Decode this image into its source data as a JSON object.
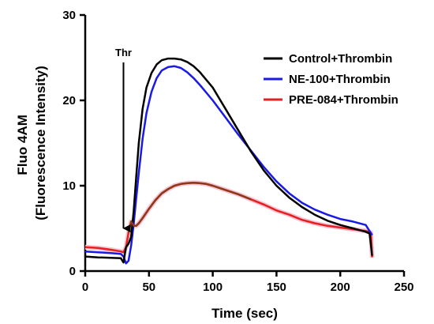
{
  "chart_data": {
    "type": "line",
    "xlabel": "Time (sec)",
    "ylabel_lines": [
      "Fluo 4AM",
      "(Fluorescence Intensity)"
    ],
    "xlim": [
      0,
      250
    ],
    "ylim": [
      0,
      30
    ],
    "xticks": [
      0,
      50,
      100,
      150,
      200,
      250
    ],
    "yticks": [
      0,
      10,
      20,
      30
    ],
    "grid": false,
    "legend_position": "top-right",
    "annotation": {
      "text": "Thr",
      "x": 30,
      "y_from": 25,
      "y_to": 5
    },
    "series": [
      {
        "name": "Control+Thrombin",
        "color": "#000000",
        "points": [
          [
            0,
            1.7
          ],
          [
            10,
            1.6
          ],
          [
            20,
            1.55
          ],
          [
            28,
            1.5
          ],
          [
            30,
            1.0
          ],
          [
            32,
            2.8
          ],
          [
            34,
            3.2
          ],
          [
            36,
            4.0
          ],
          [
            38,
            7.0
          ],
          [
            40,
            11.0
          ],
          [
            42,
            15.0
          ],
          [
            45,
            19.0
          ],
          [
            48,
            21.5
          ],
          [
            52,
            23.2
          ],
          [
            56,
            24.2
          ],
          [
            60,
            24.7
          ],
          [
            65,
            24.9
          ],
          [
            70,
            24.9
          ],
          [
            75,
            24.8
          ],
          [
            80,
            24.5
          ],
          [
            85,
            24.0
          ],
          [
            90,
            23.3
          ],
          [
            100,
            21.5
          ],
          [
            110,
            19.0
          ],
          [
            120,
            16.5
          ],
          [
            130,
            14.0
          ],
          [
            140,
            11.8
          ],
          [
            150,
            10.0
          ],
          [
            160,
            8.6
          ],
          [
            170,
            7.5
          ],
          [
            180,
            6.6
          ],
          [
            190,
            5.9
          ],
          [
            200,
            5.4
          ],
          [
            210,
            5.0
          ],
          [
            220,
            4.6
          ],
          [
            223,
            4.4
          ],
          [
            225,
            1.8
          ]
        ]
      },
      {
        "name": "NE-100+Thrombin",
        "color": "#1a1ae6",
        "points": [
          [
            0,
            2.3
          ],
          [
            10,
            2.2
          ],
          [
            20,
            2.1
          ],
          [
            28,
            2.0
          ],
          [
            30,
            1.7
          ],
          [
            32,
            0.9
          ],
          [
            34,
            1.2
          ],
          [
            36,
            3.0
          ],
          [
            38,
            5.5
          ],
          [
            40,
            8.5
          ],
          [
            42,
            11.5
          ],
          [
            45,
            15.5
          ],
          [
            48,
            18.5
          ],
          [
            52,
            21.0
          ],
          [
            56,
            22.6
          ],
          [
            60,
            23.5
          ],
          [
            65,
            23.9
          ],
          [
            70,
            24.0
          ],
          [
            75,
            23.8
          ],
          [
            80,
            23.3
          ],
          [
            85,
            22.6
          ],
          [
            90,
            21.8
          ],
          [
            100,
            20.0
          ],
          [
            110,
            18.0
          ],
          [
            120,
            16.0
          ],
          [
            130,
            14.1
          ],
          [
            140,
            12.2
          ],
          [
            150,
            10.5
          ],
          [
            160,
            9.1
          ],
          [
            170,
            8.0
          ],
          [
            180,
            7.2
          ],
          [
            190,
            6.6
          ],
          [
            200,
            6.1
          ],
          [
            210,
            5.8
          ],
          [
            220,
            5.4
          ],
          [
            225,
            4.2
          ]
        ]
      },
      {
        "name": "PRE-084+Thrombin",
        "color": "#e62020",
        "points": [
          [
            0,
            2.8
          ],
          [
            10,
            2.7
          ],
          [
            20,
            2.5
          ],
          [
            28,
            2.3
          ],
          [
            30,
            2.2
          ],
          [
            32,
            2.8
          ],
          [
            34,
            4.5
          ],
          [
            36,
            5.8
          ],
          [
            38,
            5.3
          ],
          [
            40,
            5.3
          ],
          [
            42,
            5.6
          ],
          [
            45,
            6.2
          ],
          [
            50,
            7.3
          ],
          [
            55,
            8.3
          ],
          [
            60,
            9.1
          ],
          [
            65,
            9.6
          ],
          [
            70,
            10.0
          ],
          [
            75,
            10.2
          ],
          [
            80,
            10.3
          ],
          [
            85,
            10.35
          ],
          [
            90,
            10.3
          ],
          [
            95,
            10.2
          ],
          [
            100,
            10.0
          ],
          [
            110,
            9.5
          ],
          [
            120,
            9.0
          ],
          [
            130,
            8.4
          ],
          [
            140,
            7.8
          ],
          [
            150,
            7.1
          ],
          [
            160,
            6.6
          ],
          [
            170,
            6.0
          ],
          [
            180,
            5.6
          ],
          [
            190,
            5.3
          ],
          [
            200,
            5.1
          ],
          [
            210,
            4.9
          ],
          [
            220,
            4.7
          ],
          [
            224,
            4.5
          ],
          [
            225,
            1.6
          ]
        ]
      }
    ]
  }
}
